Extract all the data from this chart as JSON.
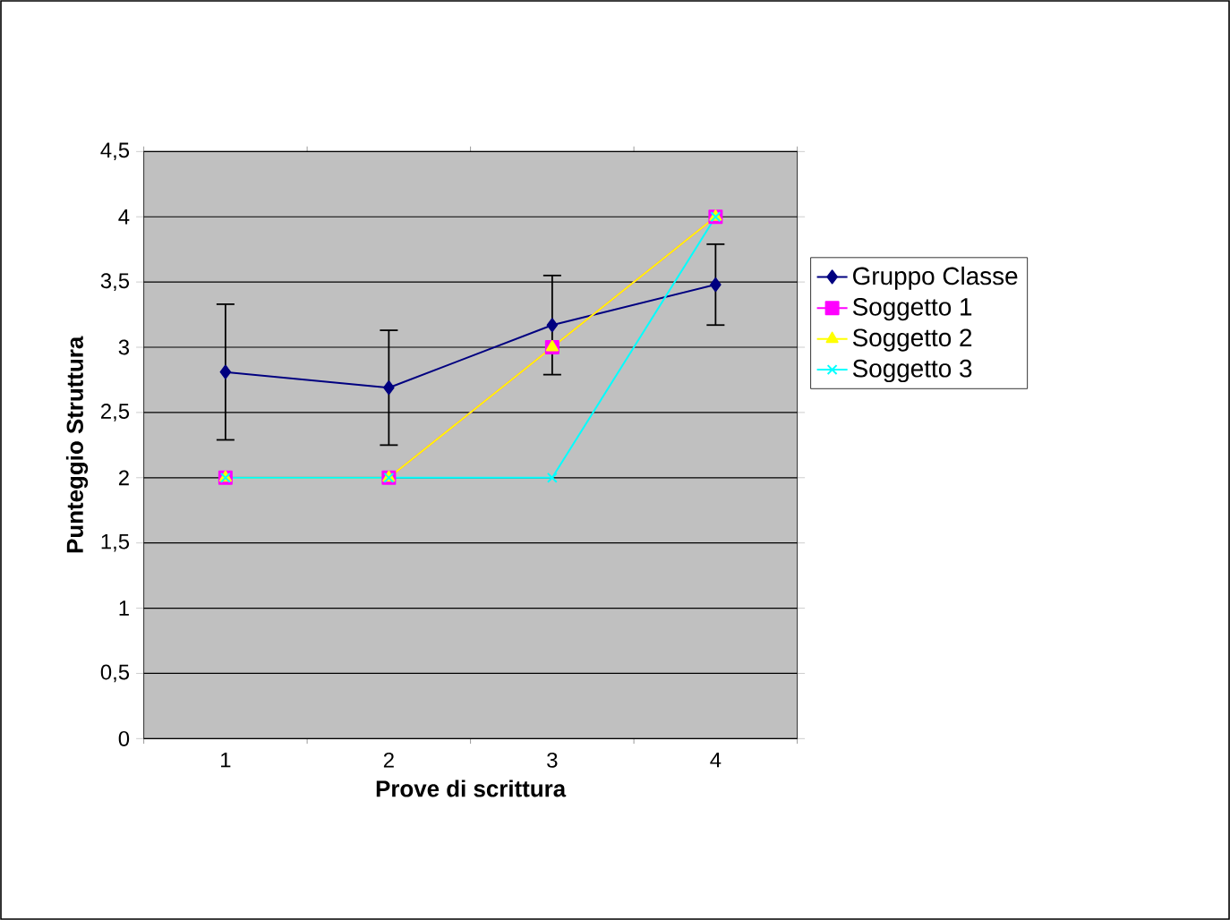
{
  "chart_data": {
    "type": "line",
    "xlabel": "Prove di scrittura",
    "ylabel": "Punteggio Struttura",
    "categories": [
      "1",
      "2",
      "3",
      "4"
    ],
    "ylim": [
      0,
      4.5
    ],
    "yticks": [
      0,
      {
        "value": 0.5,
        "label": "0,5"
      },
      1,
      {
        "value": 1.5,
        "label": "1,5"
      },
      2,
      {
        "value": 2.5,
        "label": "2,5"
      },
      3,
      {
        "value": 3.5,
        "label": "3,5"
      },
      4,
      {
        "value": 4.5,
        "label": "4,5"
      }
    ],
    "grid": "y",
    "legend": "right",
    "line_style": "solid",
    "series": [
      {
        "name": "Gruppo Classe",
        "color": "#000080",
        "marker": "diamond",
        "values": [
          2.81,
          2.69,
          3.17,
          3.48
        ],
        "errors": [
          0.52,
          0.44,
          0.38,
          0.31
        ]
      },
      {
        "name": "Soggetto 1",
        "color": "#ff00ff",
        "marker": "square",
        "values": [
          2,
          2,
          3,
          4
        ]
      },
      {
        "name": "Soggetto 2",
        "color": "#ffff00",
        "marker": "triangle",
        "values": [
          2,
          2,
          3,
          4
        ]
      },
      {
        "name": "Soggetto 3",
        "color": "#00ffff",
        "marker": "cross",
        "values": [
          2,
          2,
          2,
          4
        ]
      }
    ]
  }
}
